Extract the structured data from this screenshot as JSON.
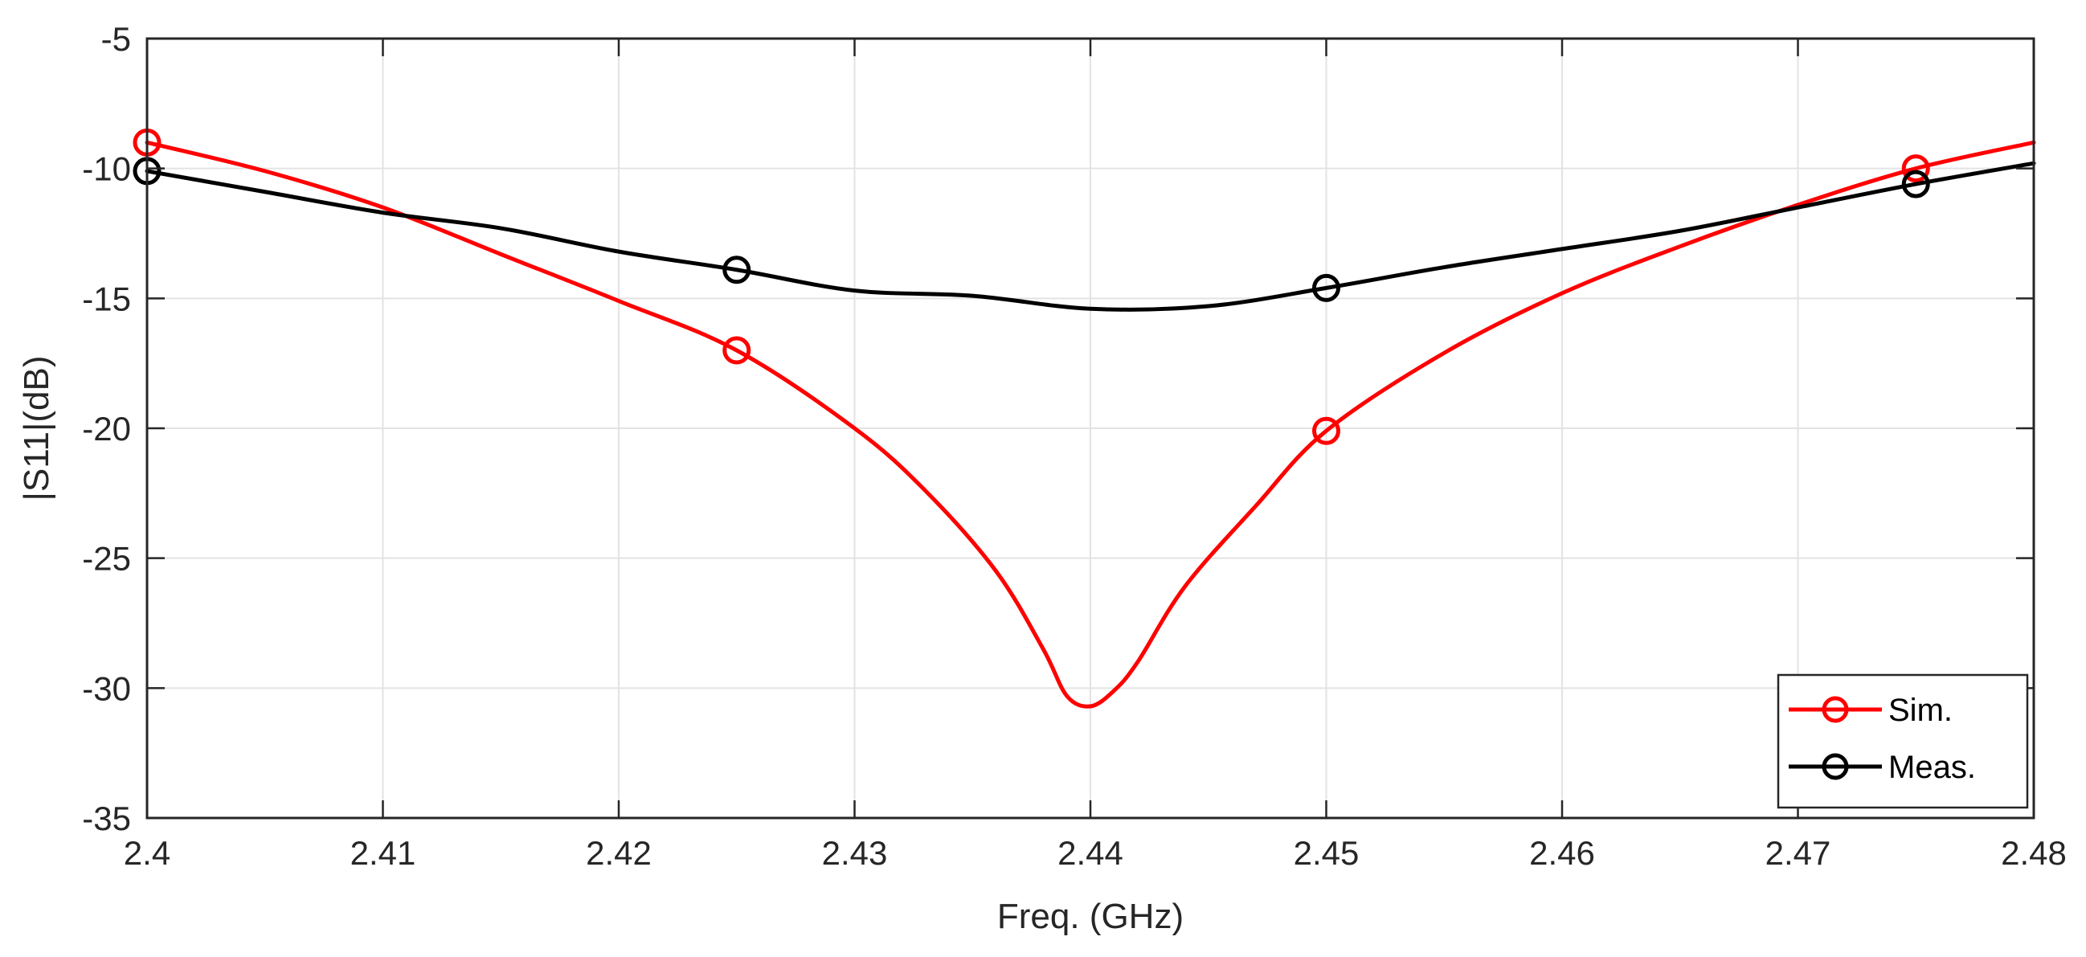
{
  "chart_data": {
    "type": "line",
    "title": "",
    "xlabel": "Freq. (GHz)",
    "ylabel": "|S11|(dB)",
    "xlim": [
      2.4,
      2.48
    ],
    "ylim": [
      -35,
      -5
    ],
    "grid": true,
    "x_ticks": [
      2.4,
      2.41,
      2.42,
      2.43,
      2.44,
      2.45,
      2.46,
      2.47,
      2.48
    ],
    "x_tick_labels": [
      "2.4",
      "2.41",
      "2.42",
      "2.43",
      "2.44",
      "2.45",
      "2.46",
      "2.47",
      "2.48"
    ],
    "y_ticks": [
      -5,
      -10,
      -15,
      -20,
      -25,
      -30,
      -35
    ],
    "y_tick_labels": [
      "-5",
      "-10",
      "-15",
      "-20",
      "-25",
      "-30",
      "-35"
    ],
    "legend_position": "bottom-right",
    "series": [
      {
        "name": "Sim.",
        "color": "#ff0000",
        "marker": "circle",
        "x": [
          2.4,
          2.405,
          2.41,
          2.415,
          2.42,
          2.425,
          2.43,
          2.433,
          2.436,
          2.438,
          2.439,
          2.44,
          2.441,
          2.442,
          2.444,
          2.447,
          2.45,
          2.455,
          2.46,
          2.465,
          2.47,
          2.475,
          2.48
        ],
        "values": [
          -9.0,
          -10.1,
          -11.5,
          -13.3,
          -15.1,
          -17.0,
          -20.0,
          -22.4,
          -25.5,
          -28.5,
          -30.3,
          -30.7,
          -30.1,
          -29.0,
          -26.1,
          -23.0,
          -20.1,
          -17.1,
          -14.8,
          -13.0,
          -11.4,
          -10.0,
          -9.0
        ],
        "marker_x": [
          2.4,
          2.425,
          2.45,
          2.475
        ],
        "marker_values": [
          -9.0,
          -17.0,
          -20.1,
          -10.0
        ]
      },
      {
        "name": "Meas.",
        "color": "#000000",
        "marker": "circle",
        "x": [
          2.4,
          2.405,
          2.41,
          2.415,
          2.42,
          2.425,
          2.43,
          2.435,
          2.44,
          2.445,
          2.45,
          2.455,
          2.46,
          2.465,
          2.47,
          2.475,
          2.48
        ],
        "values": [
          -10.1,
          -10.9,
          -11.7,
          -12.3,
          -13.2,
          -13.9,
          -14.7,
          -14.9,
          -15.4,
          -15.3,
          -14.6,
          -13.8,
          -13.1,
          -12.4,
          -11.5,
          -10.6,
          -9.8
        ],
        "marker_x": [
          2.4,
          2.425,
          2.45,
          2.475
        ],
        "marker_values": [
          -10.1,
          -13.9,
          -14.6,
          -10.6
        ]
      }
    ]
  }
}
